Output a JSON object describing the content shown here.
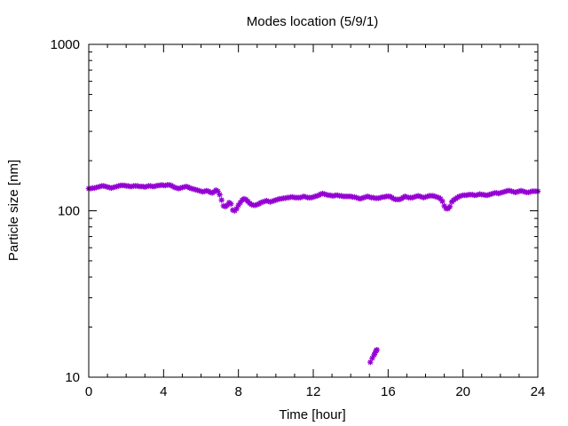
{
  "chart_data": {
    "type": "scatter",
    "title": "Modes location (5/9/1)",
    "xlabel": "Time [hour]",
    "ylabel": "Particle size [nm]",
    "xlim": [
      0,
      24
    ],
    "ylim": [
      10,
      1000
    ],
    "yscale": "log",
    "grid": false,
    "legend": "none",
    "xticks": [
      0,
      4,
      8,
      12,
      16,
      20,
      24
    ],
    "xtick_labels": [
      "0",
      "4",
      "8",
      "12",
      "16",
      "20",
      "24"
    ],
    "yticks": [
      10,
      100,
      1000
    ],
    "ytick_labels": [
      "10",
      "100",
      "1000"
    ],
    "marker_color": "#9400d3",
    "series": [
      {
        "points": [
          [
            0.0,
            136
          ],
          [
            0.1,
            136
          ],
          [
            0.2,
            137
          ],
          [
            0.3,
            137
          ],
          [
            0.4,
            138
          ],
          [
            0.5,
            139
          ],
          [
            0.6,
            140
          ],
          [
            0.7,
            141
          ],
          [
            0.8,
            141
          ],
          [
            0.9,
            140
          ],
          [
            1.0,
            139
          ],
          [
            1.1,
            138
          ],
          [
            1.2,
            137
          ],
          [
            1.3,
            138
          ],
          [
            1.4,
            139
          ],
          [
            1.5,
            140
          ],
          [
            1.6,
            141
          ],
          [
            1.7,
            142
          ],
          [
            1.8,
            142
          ],
          [
            1.9,
            142
          ],
          [
            2.0,
            141
          ],
          [
            2.1,
            141
          ],
          [
            2.2,
            140
          ],
          [
            2.3,
            140
          ],
          [
            2.4,
            141
          ],
          [
            2.5,
            141
          ],
          [
            2.6,
            141
          ],
          [
            2.7,
            140
          ],
          [
            2.8,
            140
          ],
          [
            2.9,
            140
          ],
          [
            3.0,
            139
          ],
          [
            3.1,
            140
          ],
          [
            3.2,
            141
          ],
          [
            3.3,
            141
          ],
          [
            3.4,
            140
          ],
          [
            3.5,
            140
          ],
          [
            3.6,
            141
          ],
          [
            3.7,
            142
          ],
          [
            3.8,
            142
          ],
          [
            3.9,
            143
          ],
          [
            4.0,
            142
          ],
          [
            4.1,
            142
          ],
          [
            4.2,
            143
          ],
          [
            4.3,
            143
          ],
          [
            4.4,
            142
          ],
          [
            4.5,
            140
          ],
          [
            4.6,
            138
          ],
          [
            4.7,
            137
          ],
          [
            4.8,
            136
          ],
          [
            4.9,
            137
          ],
          [
            5.0,
            138
          ],
          [
            5.1,
            139
          ],
          [
            5.2,
            140
          ],
          [
            5.3,
            139
          ],
          [
            5.4,
            137
          ],
          [
            5.5,
            136
          ],
          [
            5.6,
            135
          ],
          [
            5.7,
            134
          ],
          [
            5.8,
            133
          ],
          [
            5.9,
            132
          ],
          [
            6.0,
            131
          ],
          [
            6.1,
            130
          ],
          [
            6.2,
            131
          ],
          [
            6.3,
            132
          ],
          [
            6.4,
            131
          ],
          [
            6.5,
            129
          ],
          [
            6.6,
            128
          ],
          [
            6.7,
            130
          ],
          [
            6.8,
            133
          ],
          [
            6.9,
            131
          ],
          [
            7.0,
            125
          ],
          [
            7.1,
            116
          ],
          [
            7.2,
            107
          ],
          [
            7.3,
            106
          ],
          [
            7.4,
            108
          ],
          [
            7.5,
            112
          ],
          [
            7.6,
            110
          ],
          [
            7.7,
            101
          ],
          [
            7.8,
            100
          ],
          [
            7.9,
            103
          ],
          [
            8.0,
            108
          ],
          [
            8.1,
            112
          ],
          [
            8.2,
            116
          ],
          [
            8.3,
            118
          ],
          [
            8.4,
            117
          ],
          [
            8.5,
            114
          ],
          [
            8.6,
            111
          ],
          [
            8.7,
            109
          ],
          [
            8.8,
            108
          ],
          [
            8.9,
            108
          ],
          [
            9.0,
            109
          ],
          [
            9.1,
            110
          ],
          [
            9.2,
            112
          ],
          [
            9.3,
            113
          ],
          [
            9.4,
            114
          ],
          [
            9.5,
            115
          ],
          [
            9.6,
            114
          ],
          [
            9.7,
            113
          ],
          [
            9.8,
            114
          ],
          [
            9.9,
            115
          ],
          [
            10.0,
            116
          ],
          [
            10.1,
            117
          ],
          [
            10.2,
            118
          ],
          [
            10.3,
            118
          ],
          [
            10.4,
            119
          ],
          [
            10.5,
            119
          ],
          [
            10.6,
            120
          ],
          [
            10.7,
            120
          ],
          [
            10.8,
            121
          ],
          [
            10.9,
            121
          ],
          [
            11.0,
            120
          ],
          [
            11.1,
            120
          ],
          [
            11.2,
            120
          ],
          [
            11.3,
            120
          ],
          [
            11.4,
            121
          ],
          [
            11.5,
            122
          ],
          [
            11.6,
            121
          ],
          [
            11.7,
            120
          ],
          [
            11.8,
            120
          ],
          [
            11.9,
            120
          ],
          [
            12.0,
            121
          ],
          [
            12.1,
            122
          ],
          [
            12.2,
            123
          ],
          [
            12.3,
            124
          ],
          [
            12.4,
            126
          ],
          [
            12.5,
            127
          ],
          [
            12.6,
            126
          ],
          [
            12.7,
            125
          ],
          [
            12.8,
            124
          ],
          [
            12.9,
            124
          ],
          [
            13.0,
            123
          ],
          [
            13.1,
            123
          ],
          [
            13.2,
            124
          ],
          [
            13.3,
            124
          ],
          [
            13.4,
            123
          ],
          [
            13.5,
            123
          ],
          [
            13.6,
            122
          ],
          [
            13.7,
            122
          ],
          [
            13.8,
            122
          ],
          [
            13.9,
            122
          ],
          [
            14.0,
            122
          ],
          [
            14.1,
            121
          ],
          [
            14.2,
            121
          ],
          [
            14.3,
            120
          ],
          [
            14.4,
            119
          ],
          [
            14.5,
            118
          ],
          [
            14.6,
            119
          ],
          [
            14.7,
            120
          ],
          [
            14.8,
            121
          ],
          [
            14.9,
            122
          ],
          [
            15.0,
            121
          ],
          [
            15.1,
            120
          ],
          [
            15.2,
            120
          ],
          [
            15.3,
            119
          ],
          [
            15.4,
            119
          ],
          [
            15.5,
            119
          ],
          [
            15.6,
            120
          ],
          [
            15.7,
            121
          ],
          [
            15.8,
            121
          ],
          [
            15.9,
            122
          ],
          [
            16.0,
            122
          ],
          [
            16.1,
            122
          ],
          [
            16.2,
            120
          ],
          [
            16.3,
            118
          ],
          [
            16.4,
            117
          ],
          [
            16.5,
            117
          ],
          [
            16.6,
            117
          ],
          [
            16.7,
            118
          ],
          [
            16.8,
            120
          ],
          [
            16.9,
            122
          ],
          [
            17.0,
            121
          ],
          [
            17.1,
            120
          ],
          [
            17.2,
            120
          ],
          [
            17.3,
            120
          ],
          [
            17.4,
            121
          ],
          [
            17.5,
            122
          ],
          [
            17.6,
            123
          ],
          [
            17.7,
            122
          ],
          [
            17.8,
            121
          ],
          [
            17.9,
            120
          ],
          [
            18.0,
            121
          ],
          [
            18.1,
            122
          ],
          [
            18.2,
            123
          ],
          [
            18.3,
            123
          ],
          [
            18.4,
            123
          ],
          [
            18.5,
            122
          ],
          [
            18.6,
            121
          ],
          [
            18.7,
            120
          ],
          [
            18.8,
            118
          ],
          [
            18.9,
            114
          ],
          [
            19.0,
            107
          ],
          [
            19.1,
            103
          ],
          [
            19.2,
            103
          ],
          [
            19.3,
            106
          ],
          [
            19.4,
            113
          ],
          [
            19.5,
            116
          ],
          [
            19.6,
            118
          ],
          [
            19.7,
            120
          ],
          [
            19.8,
            122
          ],
          [
            19.9,
            123
          ],
          [
            20.0,
            124
          ],
          [
            20.1,
            124
          ],
          [
            20.2,
            124
          ],
          [
            20.3,
            125
          ],
          [
            20.4,
            125
          ],
          [
            20.5,
            125
          ],
          [
            20.6,
            124
          ],
          [
            20.7,
            124
          ],
          [
            20.8,
            125
          ],
          [
            20.9,
            126
          ],
          [
            21.0,
            125
          ],
          [
            21.1,
            125
          ],
          [
            21.2,
            124
          ],
          [
            21.3,
            124
          ],
          [
            21.4,
            125
          ],
          [
            21.5,
            126
          ],
          [
            21.6,
            127
          ],
          [
            21.7,
            128
          ],
          [
            21.8,
            128
          ],
          [
            21.9,
            127
          ],
          [
            22.0,
            128
          ],
          [
            22.1,
            129
          ],
          [
            22.2,
            130
          ],
          [
            22.3,
            131
          ],
          [
            22.4,
            132
          ],
          [
            22.5,
            132
          ],
          [
            22.6,
            131
          ],
          [
            22.7,
            130
          ],
          [
            22.8,
            129
          ],
          [
            22.9,
            130
          ],
          [
            23.0,
            131
          ],
          [
            23.1,
            132
          ],
          [
            23.2,
            131
          ],
          [
            23.3,
            130
          ],
          [
            23.4,
            129
          ],
          [
            23.5,
            129
          ],
          [
            23.6,
            130
          ],
          [
            23.7,
            131
          ],
          [
            23.8,
            131
          ],
          [
            23.9,
            131
          ],
          [
            24.0,
            131
          ],
          [
            15.05,
            12.3
          ],
          [
            15.15,
            13.0
          ],
          [
            15.25,
            13.6
          ],
          [
            15.3,
            14.0
          ],
          [
            15.35,
            14.4
          ],
          [
            15.4,
            14.6
          ]
        ]
      }
    ]
  }
}
